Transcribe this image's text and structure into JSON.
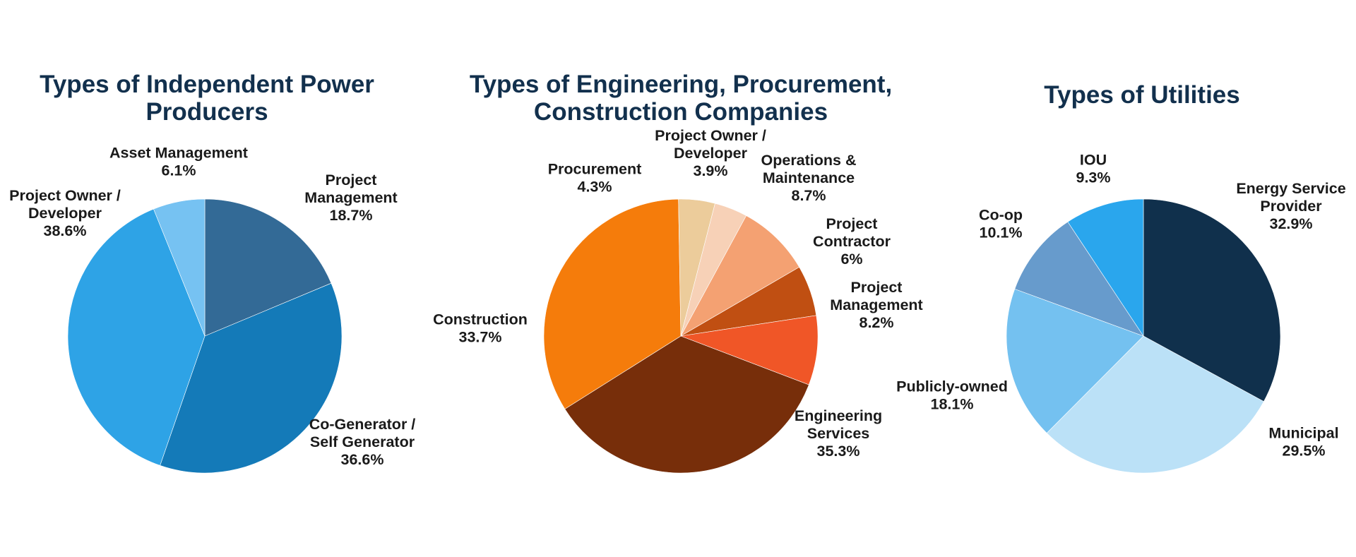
{
  "chart_data": [
    {
      "type": "pie",
      "title": [
        "Types of Independent Power",
        "Producers"
      ],
      "slices": [
        {
          "label": [
            "Project",
            "Management"
          ],
          "value": 18.7,
          "value_label": "18.7%",
          "color": "#336a96"
        },
        {
          "label": [
            "Co-Generator /",
            "Self Generator"
          ],
          "value": 36.6,
          "value_label": "36.6%",
          "color": "#147ab8"
        },
        {
          "label": [
            "Project Owner /",
            "Developer"
          ],
          "value": 38.6,
          "value_label": "38.6%",
          "color": "#2ea3e6"
        },
        {
          "label": [
            "Asset Management"
          ],
          "value": 6.1,
          "value_label": "6.1%",
          "color": "#76c2f2"
        }
      ]
    },
    {
      "type": "pie",
      "title": [
        "Types of Engineering, Procurement,",
        "Construction Companies"
      ],
      "slices": [
        {
          "label": [
            "Operations &",
            "Maintenance"
          ],
          "value": 8.7,
          "value_label": "8.7%",
          "color": "#f4a172"
        },
        {
          "label": [
            "Project",
            "Contractor"
          ],
          "value": 6.0,
          "value_label": "6%",
          "color": "#c04f12"
        },
        {
          "label": [
            "Project",
            "Management"
          ],
          "value": 8.2,
          "value_label": "8.2%",
          "color": "#f05627"
        },
        {
          "label": [
            "Engineering",
            "Services"
          ],
          "value": 35.3,
          "value_label": "35.3%",
          "color": "#772e0a"
        },
        {
          "label": [
            "Construction"
          ],
          "value": 33.7,
          "value_label": "33.7%",
          "color": "#f57c0b"
        },
        {
          "label": [
            "Procurement"
          ],
          "value": 4.3,
          "value_label": "4.3%",
          "color": "#eccc9b"
        },
        {
          "label": [
            "Project Owner /",
            "Developer"
          ],
          "value": 3.9,
          "value_label": "3.9%",
          "color": "#f7d1b7"
        }
      ]
    },
    {
      "type": "pie",
      "title": [
        "Types of Utilities"
      ],
      "slices": [
        {
          "label": [
            "Energy Service",
            "Provider"
          ],
          "value": 32.9,
          "value_label": "32.9%",
          "color": "#10304c"
        },
        {
          "label": [
            "Municipal"
          ],
          "value": 29.5,
          "value_label": "29.5%",
          "color": "#bbe1f7"
        },
        {
          "label": [
            "Publicly-owned"
          ],
          "value": 18.1,
          "value_label": "18.1%",
          "color": "#74c1f0"
        },
        {
          "label": [
            "Co-op"
          ],
          "value": 10.1,
          "value_label": "10.1%",
          "color": "#679bcc"
        },
        {
          "label": [
            "IOU"
          ],
          "value": 9.3,
          "value_label": "9.3%",
          "color": "#2aa6ed"
        }
      ]
    }
  ]
}
